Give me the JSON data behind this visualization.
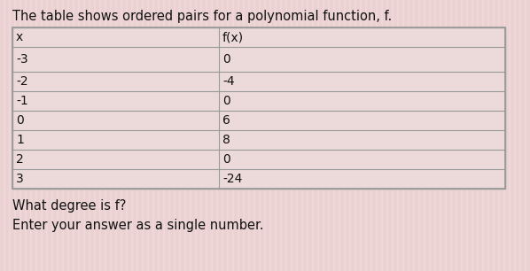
{
  "title": "The table shows ordered pairs for a polynomial function, f.",
  "subtitle1": "What degree is f?",
  "subtitle2": "Enter your answer as a single number.",
  "col_headers": [
    "x",
    "f(x)"
  ],
  "rows": [
    [
      "-3",
      "0"
    ],
    [
      "-2",
      "-4"
    ],
    [
      "-1",
      "0"
    ],
    [
      "0",
      "6"
    ],
    [
      "1",
      "8"
    ],
    [
      "2",
      "0"
    ],
    [
      "3",
      "-24"
    ]
  ],
  "bg_color": "#f0d8d8",
  "table_bg": "#ecdada",
  "border_color": "#999999",
  "text_color": "#111111",
  "title_fontsize": 10.5,
  "body_fontsize": 10,
  "subtitle_fontsize": 10.5,
  "fig_width": 5.98,
  "fig_height": 3.06,
  "dpi": 100,
  "stripe_color": "#e8cccc",
  "stripe_alpha": 0.5
}
